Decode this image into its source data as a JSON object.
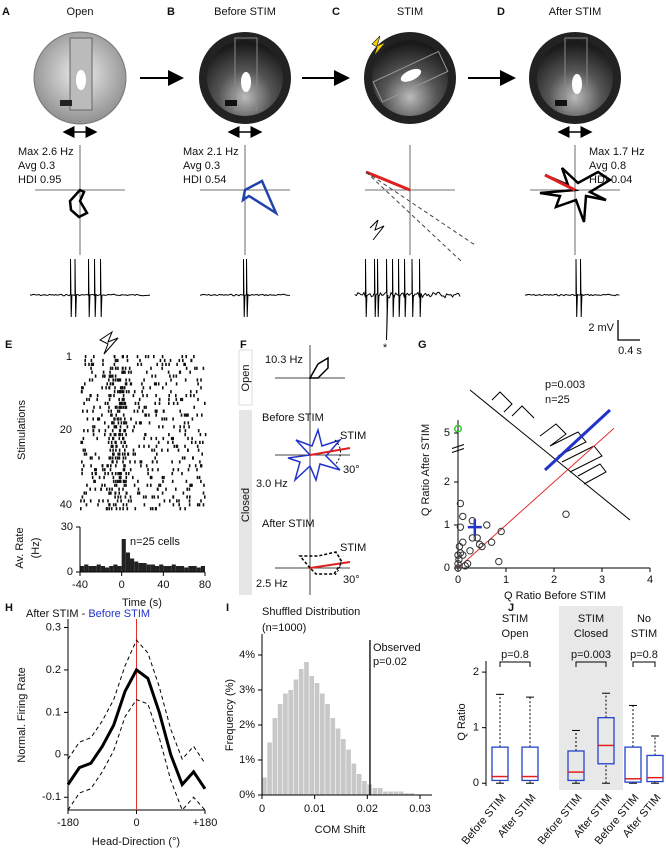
{
  "figure": {
    "A": {
      "letter": "A",
      "title": "Open",
      "stats": [
        "Max 2.6 Hz",
        "Avg 0.3",
        "HDI 0.95"
      ]
    },
    "B": {
      "letter": "B",
      "title": "Before STIM",
      "stats": [
        "Max 2.1 Hz",
        "Avg 0.3",
        "HDI 0.54"
      ]
    },
    "C": {
      "letter": "C",
      "title": "STIM",
      "mark": "*"
    },
    "D": {
      "letter": "D",
      "title": "After STIM",
      "stats": [
        "Max 1.7 Hz",
        "Avg 0.8",
        "HDI 0.04"
      ]
    },
    "scale_bar": {
      "voltage": "2 mV",
      "time": "0.4 s"
    },
    "E": {
      "letter": "E",
      "ylabel": "Stimulations",
      "rows": [
        "1",
        "20",
        "40"
      ]
    },
    "F": {
      "letter": "F",
      "open_rate": "10.3 Hz",
      "open": "Open",
      "before": "Before STIM",
      "stim_before": "STIM",
      "angle_before": "30°",
      "before_rate": "3.0 Hz",
      "closed": "Closed",
      "after": "After STIM",
      "stim_after": "STIM",
      "angle_after": "30°",
      "after_rate": "2.5 Hz"
    },
    "G": {
      "letter": "G"
    },
    "H": {
      "letter": "H"
    },
    "I": {
      "letter": "I"
    },
    "J": {
      "letter": "J"
    }
  },
  "chart_data": [
    {
      "type": "histogram",
      "ylabel": "Av. Rate",
      "ylabel_unit": "(Hz)",
      "xlabel": "Time (s)",
      "annotation": "n=25 cells",
      "color": "#222222",
      "bins": [
        -40,
        -36,
        -32,
        -28,
        -24,
        -20,
        -16,
        -12,
        -8,
        -4,
        0,
        4,
        8,
        12,
        16,
        20,
        24,
        28,
        32,
        36,
        40,
        44,
        48,
        52,
        56,
        60,
        64,
        68,
        72,
        76,
        80
      ],
      "values": [
        4,
        5,
        4,
        4,
        5,
        4,
        3,
        4,
        5,
        4,
        22,
        13,
        9,
        7,
        6,
        6,
        5,
        5,
        4,
        5,
        4,
        4,
        5,
        4,
        4,
        3,
        4,
        4,
        3,
        4
      ],
      "xlim": [
        -40,
        80
      ],
      "xticks": [
        -40,
        0,
        40,
        80
      ],
      "ylim": [
        0,
        30
      ],
      "yticks": [
        0,
        30
      ]
    },
    {
      "type": "scatter",
      "xlabel": "Q Ratio Before STIM",
      "ylabel": "Q Ratio After STIM",
      "annotations": [
        "p=0.003",
        "n=25"
      ],
      "x": [
        0,
        0,
        0.02,
        0.05,
        0.03,
        0.1,
        0.05,
        0.05,
        0.1,
        0.2,
        0.25,
        0.3,
        0.4,
        0.45,
        0.5,
        0.6,
        0.85,
        0.9,
        0.3,
        0.1,
        0,
        2.25,
        0.7,
        0.15
      ],
      "y": [
        0,
        0.1,
        0.2,
        0.35,
        0.5,
        0.6,
        0.95,
        1.5,
        1.2,
        0.1,
        0.4,
        0.7,
        0.7,
        0.55,
        0.5,
        1.0,
        0.15,
        0.85,
        1.1,
        0.3,
        0.3,
        1.25,
        0.6,
        0.05
      ],
      "color": "#333333",
      "highlight": {
        "x": 0,
        "y": 5.1,
        "color": "#33cc33"
      },
      "mean": {
        "x": 0.35,
        "y": 0.95,
        "color": "#2233cc"
      },
      "diagonal_color": "#e03030",
      "xlim": [
        0,
        4
      ],
      "xticks": [
        0,
        1,
        2,
        3,
        4
      ],
      "ylim": [
        0,
        5.3
      ],
      "yticks": [
        0,
        1,
        2,
        5
      ],
      "ybreak": [
        2.5,
        4.8
      ]
    },
    {
      "type": "line",
      "title": "After STIM - ",
      "title_highlight": "Before STIM",
      "xlabel": "Head-Direction (°)",
      "ylabel": "Normal. Firing Rate",
      "x": [
        -180,
        -150,
        -120,
        -90,
        -60,
        -30,
        0,
        30,
        60,
        90,
        120,
        150,
        180
      ],
      "series": [
        {
          "values": [
            -0.07,
            -0.03,
            -0.02,
            0.02,
            0.07,
            0.15,
            0.2,
            0.18,
            0.1,
            0.0,
            -0.07,
            -0.04,
            -0.08
          ],
          "color": "#000000",
          "dash": false
        },
        {
          "values": [
            -0.01,
            0.03,
            0.04,
            0.08,
            0.13,
            0.21,
            0.27,
            0.24,
            0.16,
            0.06,
            -0.01,
            0.02,
            -0.02
          ],
          "color": "#000000",
          "dash": true
        },
        {
          "values": [
            -0.13,
            -0.09,
            -0.08,
            -0.04,
            0.01,
            0.09,
            0.13,
            0.12,
            0.04,
            -0.06,
            -0.13,
            -0.1,
            -0.13
          ],
          "color": "#000000",
          "dash": true
        }
      ],
      "vline": 0,
      "vline_color": "#e03030",
      "xlim": [
        -180,
        180
      ],
      "xticks": [
        -180,
        0,
        {
          "value": 180,
          "label": "+180"
        }
      ],
      "ylim": [
        -0.13,
        0.32
      ],
      "yticks": [
        -0.1,
        0,
        0.1,
        0.2,
        0.3
      ]
    },
    {
      "type": "histogram",
      "title": "Shuffled Distribution",
      "subtitle": "(n=1000)",
      "xlabel": "COM Shift",
      "ylabel": "Frequency (%)",
      "color": "#c8c8c8",
      "bins": [
        0,
        0.001,
        0.002,
        0.003,
        0.004,
        0.005,
        0.006,
        0.007,
        0.008,
        0.009,
        0.01,
        0.011,
        0.012,
        0.013,
        0.014,
        0.015,
        0.016,
        0.017,
        0.018,
        0.019,
        0.02,
        0.021,
        0.022,
        0.023,
        0.024,
        0.025,
        0.026,
        0.027,
        0.028,
        0.029,
        0.03
      ],
      "values": [
        0.5,
        1.5,
        2.2,
        2.6,
        2.9,
        3.0,
        3.3,
        3.6,
        3.8,
        3.4,
        3.2,
        2.9,
        2.6,
        2.2,
        1.9,
        1.6,
        1.3,
        0.9,
        0.6,
        0.4,
        0.3,
        0.2,
        0.2,
        0.1,
        0.1,
        0.1,
        0.1,
        0.05,
        0.05,
        0
      ],
      "observed": 0.0205,
      "observed_label": "Observed",
      "observed_p": "p=0.02",
      "xlim": [
        0,
        0.03
      ],
      "xticks": [
        0,
        0.01,
        0.02,
        0.03
      ],
      "ylim": [
        0,
        4.6
      ],
      "yticks": [
        {
          "value": 0,
          "label": "0%"
        },
        {
          "value": 1,
          "label": "1%"
        },
        {
          "value": 2,
          "label": "2%"
        },
        {
          "value": 3,
          "label": "3%"
        },
        {
          "value": 4,
          "label": "4%"
        }
      ]
    },
    {
      "type": "box",
      "ylabel": "Q Ratio",
      "box_color": "#2244cc",
      "median_color": "#e02020",
      "categories": [
        "Before STIM",
        "After STIM",
        "Before STIM",
        "After STIM",
        "Before STIM",
        "After STIM"
      ],
      "boxes": [
        {
          "whislo": 0,
          "q1": 0.05,
          "med": 0.12,
          "q3": 0.65,
          "whishi": 1.6
        },
        {
          "whislo": 0,
          "q1": 0.05,
          "med": 0.12,
          "q3": 0.65,
          "whishi": 1.55
        },
        {
          "whislo": 0,
          "q1": 0.05,
          "med": 0.2,
          "q3": 0.58,
          "whishi": 0.95
        },
        {
          "whislo": 0,
          "q1": 0.35,
          "med": 0.68,
          "q3": 1.18,
          "whishi": 1.62
        },
        {
          "whislo": 0,
          "q1": 0.02,
          "med": 0.08,
          "q3": 0.65,
          "whishi": 1.4
        },
        {
          "whislo": 0,
          "q1": 0.03,
          "med": 0.1,
          "q3": 0.5,
          "whishi": 0.85
        }
      ],
      "groups": [
        {
          "label": [
            "STIM",
            "Open"
          ],
          "p": "p=0.8"
        },
        {
          "label": [
            "STIM",
            "Closed"
          ],
          "p": "p=0.003"
        },
        {
          "label": [
            "No",
            "STIM"
          ],
          "p": "p=0.8"
        }
      ],
      "shaded_group": 1,
      "ylim": [
        -0.05,
        2.2
      ],
      "yticks": [
        0,
        1,
        2
      ]
    }
  ]
}
